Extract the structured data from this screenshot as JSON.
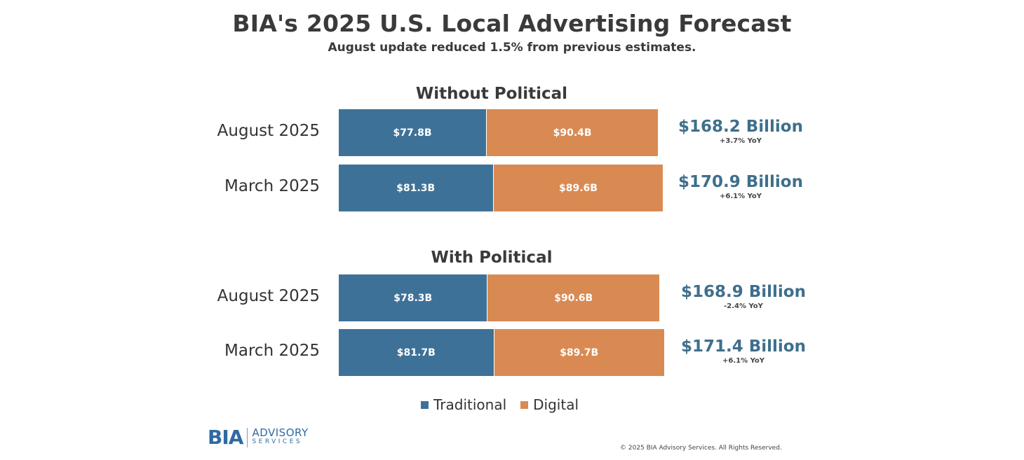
{
  "chart_data": {
    "type": "bar",
    "orientation": "horizontal-stacked",
    "title": "BIA's 2025 U.S. Local Advertising Forecast",
    "subtitle": "August update reduced 1.5% from previous estimates.",
    "colors": {
      "traditional": "#3e7198",
      "digital": "#d98a52",
      "total_text": "#3f6f8c"
    },
    "legend": [
      {
        "key": "traditional",
        "label": "Traditional"
      },
      {
        "key": "digital",
        "label": "Digital"
      }
    ],
    "groups": [
      {
        "title": "Without Political",
        "rows": [
          {
            "label": "August 2025",
            "traditional": 77.8,
            "traditional_label": "$77.8B",
            "digital": 90.4,
            "digital_label": "$90.4B",
            "total": "$168.2 Billion",
            "yoy": "+3.7% YoY"
          },
          {
            "label": "March 2025",
            "traditional": 81.3,
            "traditional_label": "$81.3B",
            "digital": 89.6,
            "digital_label": "$89.6B",
            "total": "$170.9 Billion",
            "yoy": "+6.1% YoY"
          }
        ]
      },
      {
        "title": "With Political",
        "rows": [
          {
            "label": "August 2025",
            "traditional": 78.3,
            "traditional_label": "$78.3B",
            "digital": 90.6,
            "digital_label": "$90.6B",
            "total": "$168.9 Billion",
            "yoy": "-2.4% YoY"
          },
          {
            "label": "March 2025",
            "traditional": 81.7,
            "traditional_label": "$81.7B",
            "digital": 89.7,
            "digital_label": "$89.7B",
            "total": "$171.4 Billion",
            "yoy": "+6.1% YoY"
          }
        ]
      }
    ],
    "value_unit": "$B"
  },
  "logo": {
    "brand": "BIA",
    "line1": "ADVISORY",
    "line2": "SERVICES"
  },
  "copyright": "© 2025 BIA Advisory Services. All Rights Reserved."
}
